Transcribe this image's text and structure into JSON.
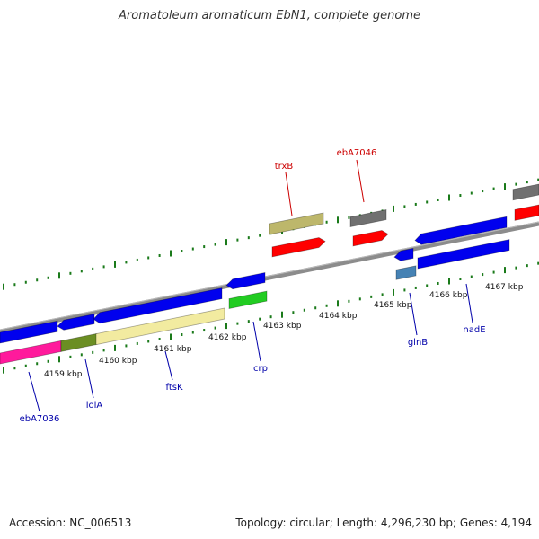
{
  "title": "Aromatoleum aromaticum EbN1, complete genome",
  "accession_text": "Accession: NC_006513",
  "summary_text": "Topology: circular; Length: 4,296,230 bp; Genes: 4,194",
  "colors": {
    "backbone": "#8c8c8c",
    "tick": "#1a7a1a",
    "gene_label_blue": "#0000aa",
    "gene_label_red": "#cc0000",
    "blue": "#0000ee",
    "red": "#ff0000",
    "magenta": "#ff1a9c",
    "olive": "#6b8e23",
    "khaki": "#f2eba0",
    "darkkhaki": "#bdb76b",
    "green": "#22cc22",
    "gray": "#707070",
    "steel": "#4682b4"
  },
  "kbp_labels": [
    "4159 kbp",
    "4160 kbp",
    "4161 kbp",
    "4162 kbp",
    "4163 kbp",
    "4164 kbp",
    "4165 kbp",
    "4166 kbp",
    "4167 kbp"
  ],
  "gene_labels": [
    {
      "name": "trxB",
      "color": "red"
    },
    {
      "name": "ebA7046",
      "color": "red"
    },
    {
      "name": "ebA7036",
      "color": "blue"
    },
    {
      "name": "lolA",
      "color": "blue"
    },
    {
      "name": "ftsK",
      "color": "blue"
    },
    {
      "name": "crp",
      "color": "blue"
    },
    {
      "name": "glnB",
      "color": "blue"
    },
    {
      "name": "nadE",
      "color": "blue"
    }
  ]
}
